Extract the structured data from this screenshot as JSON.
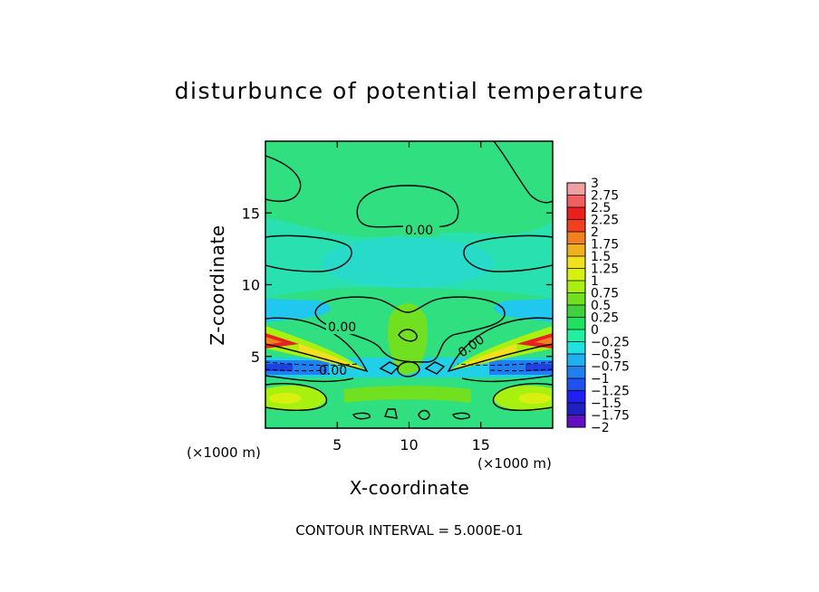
{
  "chart_data": {
    "type": "heatmap",
    "title": "disturbunce of potential temperature",
    "xlabel": "X-coordinate",
    "ylabel": "Z-coordinate",
    "x_unit": "(×1000 m)",
    "y_unit": "(×1000 m)",
    "xlim": [
      0,
      20
    ],
    "ylim": [
      0,
      20
    ],
    "x_ticks": [
      5,
      10,
      15
    ],
    "y_ticks": [
      5,
      10,
      15
    ],
    "contour_labels": [
      "0.00",
      "0.00",
      "0.00",
      "0.00"
    ],
    "footnote": "CONTOUR INTERVAL = 5.000E-01",
    "colorbar": {
      "levels": [
        "3",
        "2.75",
        "2.5",
        "2.25",
        "2",
        "1.75",
        "1.5",
        "1.25",
        "1",
        "0.75",
        "0.5",
        "0.25",
        "0",
        "−0.25",
        "−0.5",
        "−0.75",
        "−1",
        "−1.25",
        "−1.5",
        "−1.75",
        "−2"
      ],
      "colors": [
        "#f0a0a0",
        "#f06060",
        "#e82020",
        "#f04020",
        "#f08020",
        "#f0b020",
        "#f0e020",
        "#d8f010",
        "#a8f010",
        "#70e020",
        "#40d040",
        "#20e060",
        "#20f0a0",
        "#20e0e0",
        "#20b0f0",
        "#2080f0",
        "#2050f0",
        "#2020f0",
        "#2020c0",
        "#6010c0"
      ]
    }
  }
}
